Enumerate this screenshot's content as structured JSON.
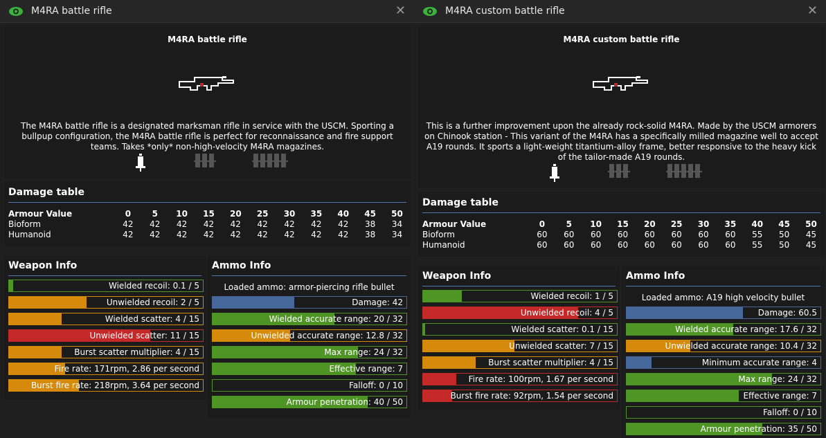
{
  "windows": [
    {
      "title": "M4RA battle rifle",
      "header_title": "M4RA battle rifle",
      "description": [
        "The M4RA battle rifle is a designated marksman rifle in service with the USCM. Sporting a",
        "bullpup configuration, the M4RA battle rifle is perfect for reconnaissance and fire support",
        "teams. Takes *only* non-high-velocity M4RA magazines."
      ],
      "damage_title": "Damage table",
      "armour": [
        "Armour Value",
        "0",
        "5",
        "10",
        "15",
        "20",
        "25",
        "30",
        "35",
        "40",
        "45",
        "50"
      ],
      "bioform": [
        "Bioform",
        "42",
        "42",
        "42",
        "42",
        "42",
        "42",
        "42",
        "42",
        "42",
        "38",
        "34"
      ],
      "humanoid": [
        "Humanoid",
        "42",
        "42",
        "42",
        "42",
        "42",
        "42",
        "42",
        "42",
        "42",
        "38",
        "34"
      ],
      "weapon_info_title": "Weapon Info",
      "ammo_info_title": "Ammo Info",
      "loaded_ammo": "Loaded ammo: armor-piercing rifle bullet",
      "weapon_bars": [
        {
          "label": "Wielded recoil: 0.1 / 5",
          "color": "green",
          "fill": 0.02
        },
        {
          "label": "Unwielded recoil: 2 / 5",
          "color": "orange",
          "fill": 0.4
        },
        {
          "label": "Wielded scatter: 4 / 15",
          "color": "orange",
          "fill": 0.27
        },
        {
          "label": "Unwielded scatter: 11 / 15",
          "color": "red",
          "fill": 0.73
        },
        {
          "label": "Burst scatter multiplier: 4 / 15",
          "color": "orange",
          "fill": 0.27
        },
        {
          "label": "Fire rate: 171rpm, 2.86 per second",
          "color": "orange",
          "fill": 0.29
        },
        {
          "label": "Burst fire rate: 218rpm, 3.64 per second",
          "color": "orange",
          "fill": 0.36
        }
      ],
      "ammo_bars": [
        {
          "label": "Damage: 42",
          "color": "blue",
          "fill": 0.42
        },
        {
          "label": "Wielded accurate range: 20 / 32",
          "color": "green",
          "fill": 0.63
        },
        {
          "label": "Unwielded accurate range: 12.8 / 32",
          "color": "orange",
          "fill": 0.4
        },
        {
          "label": "Max range: 24 / 32",
          "color": "green",
          "fill": 0.75
        },
        {
          "label": "Effective range: 7",
          "color": "green",
          "fill": 0.74
        },
        {
          "label": "Falloff: 0 / 10",
          "color": "green",
          "fill": 0.0
        },
        {
          "label": "Armour penetration: 40 / 50",
          "color": "green",
          "fill": 0.8
        }
      ]
    },
    {
      "title": "M4RA custom battle rifle",
      "header_title": "M4RA custom battle rifle",
      "description": [
        "This is a further improvement upon the already rock-solid M4RA. Made by the USCM armorers",
        "on Chinook station - This variant of the M4RA has a specifically milled magazine well to accept",
        "A19 rounds. It sports a light-weight titantium-alloy frame, better responsive to the heavy kick",
        "of the tailor-made A19 rounds."
      ],
      "damage_title": "Damage table",
      "armour": [
        "Armour Value",
        "0",
        "5",
        "10",
        "15",
        "20",
        "25",
        "30",
        "35",
        "40",
        "45",
        "50"
      ],
      "bioform": [
        "Bioform",
        "60",
        "60",
        "60",
        "60",
        "60",
        "60",
        "60",
        "60",
        "55",
        "50",
        "45"
      ],
      "humanoid": [
        "Humanoid",
        "60",
        "60",
        "60",
        "60",
        "60",
        "60",
        "60",
        "60",
        "55",
        "50",
        "45"
      ],
      "weapon_info_title": "Weapon Info",
      "ammo_info_title": "Ammo Info",
      "loaded_ammo": "Loaded ammo: A19 high velocity bullet",
      "weapon_bars": [
        {
          "label": "Wielded recoil: 1 / 5",
          "color": "green",
          "fill": 0.2
        },
        {
          "label": "Unwielded recoil: 4 / 5",
          "color": "red",
          "fill": 0.8
        },
        {
          "label": "Wielded scatter: 0.1 / 15",
          "color": "green",
          "fill": 0.01
        },
        {
          "label": "Unwielded scatter: 7 / 15",
          "color": "orange",
          "fill": 0.47
        },
        {
          "label": "Burst scatter multiplier: 4 / 15",
          "color": "orange",
          "fill": 0.27
        },
        {
          "label": "Fire rate: 100rpm, 1.67 per second",
          "color": "red",
          "fill": 0.17
        },
        {
          "label": "Burst fire rate: 92rpm, 1.54 per second",
          "color": "red",
          "fill": 0.15
        }
      ],
      "ammo_bars": [
        {
          "label": "Damage: 60.5",
          "color": "blue",
          "fill": 0.6
        },
        {
          "label": "Wielded accurate range: 17.6 / 32",
          "color": "green",
          "fill": 0.55
        },
        {
          "label": "Unwielded accurate range: 10.4 / 32",
          "color": "orange",
          "fill": 0.33
        },
        {
          "label": "Minimum accurate range: 4",
          "color": "blue",
          "fill": 0.13
        },
        {
          "label": "Max range: 24 / 32",
          "color": "green",
          "fill": 0.75
        },
        {
          "label": "Effective range: 7",
          "color": "green",
          "fill": 0.58
        },
        {
          "label": "Falloff: 0 / 10",
          "color": "green",
          "fill": 0.0
        },
        {
          "label": "Armour penetration: 35 / 50",
          "color": "green",
          "fill": 0.7
        }
      ]
    }
  ],
  "icons": {
    "eye": "eye-icon",
    "close": "close-icon",
    "gun": "rifle-icon",
    "syringe": "syringe-icon"
  },
  "colors": {
    "green": "#4f9526",
    "orange": "#d68a0c",
    "red": "#c42828",
    "blue": "#46689a",
    "accent": "#4f7bb3"
  }
}
